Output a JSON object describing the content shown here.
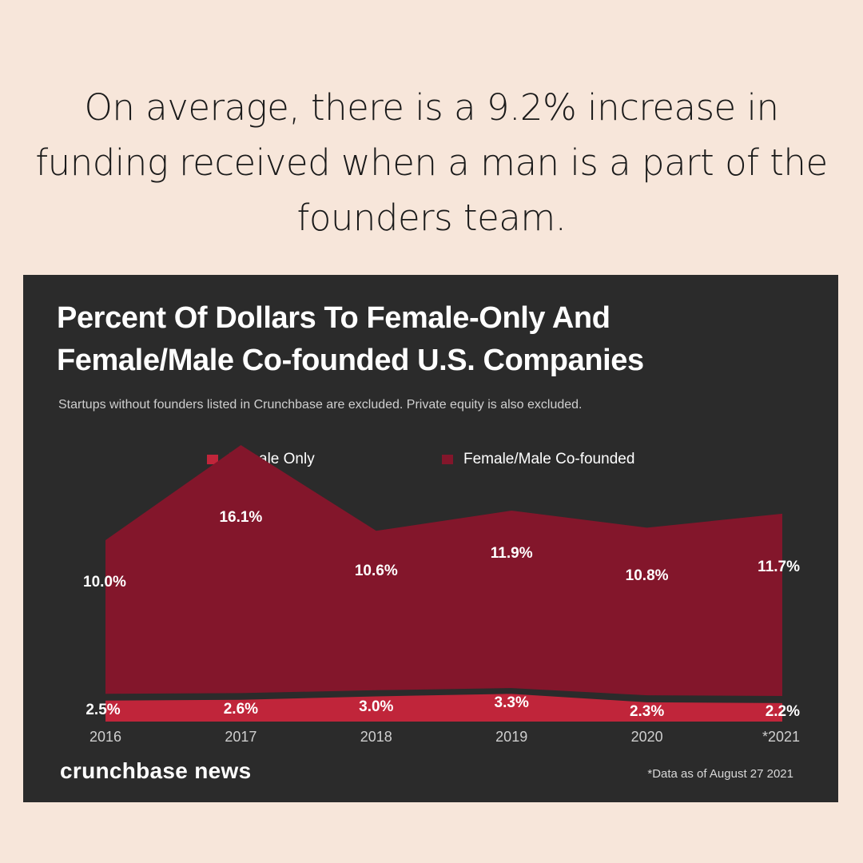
{
  "headline": "On average, there is a 9.2% increase in funding received when a man is a part of the founders team.",
  "brand": "crunchbase news",
  "footnote": "*Data as of August 27 2021",
  "colors": {
    "page_background": "#f7e6da",
    "panel_background": "#2b2b2b",
    "female_only": "#c0253a",
    "female_male_cofounded": "#83162b"
  },
  "chart_data": {
    "type": "area",
    "title": "Percent Of Dollars To Female-Only And Female/Male Co-founded U.S. Companies",
    "subtitle": "Startups without founders listed in Crunchbase are excluded. Private equity is also excluded.",
    "categories": [
      "2016",
      "2017",
      "2018",
      "2019",
      "2020",
      "*2021"
    ],
    "series": [
      {
        "name": "Female Only",
        "values": [
          2.5,
          2.6,
          3.0,
          3.3,
          2.3,
          2.2
        ],
        "labels": [
          "2.5%",
          "2.6%",
          "3.0%",
          "3.3%",
          "2.3%",
          "2.2%"
        ]
      },
      {
        "name": "Female/Male Co-founded",
        "values": [
          10.0,
          16.1,
          10.6,
          11.9,
          10.8,
          11.7
        ],
        "labels": [
          "10.0%",
          "16.1%",
          "10.6%",
          "11.9%",
          "10.8%",
          "11.7%"
        ]
      }
    ],
    "legend_position": "top-center",
    "grid": false
  }
}
